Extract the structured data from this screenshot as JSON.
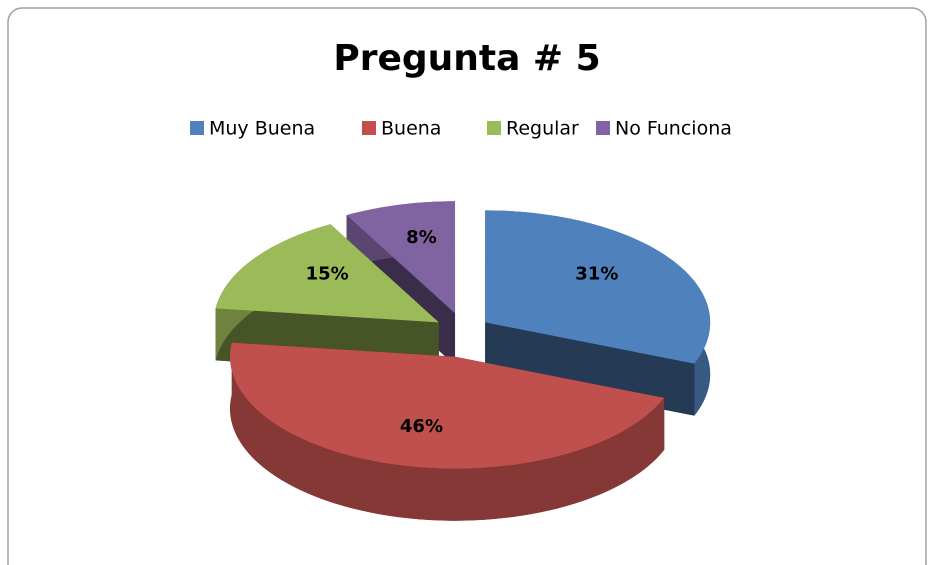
{
  "chart_data": {
    "type": "pie",
    "title": "Pregunta # 5",
    "categories": [
      "Muy Buena",
      "Buena",
      "Regular",
      "No Funciona"
    ],
    "values": [
      31,
      46,
      15,
      8
    ],
    "value_labels": [
      "31%",
      "46%",
      "15%",
      "8%"
    ],
    "colors": [
      "#4f81bd",
      "#c0504d",
      "#9bbb59",
      "#8064a2"
    ],
    "legend": "top"
  }
}
